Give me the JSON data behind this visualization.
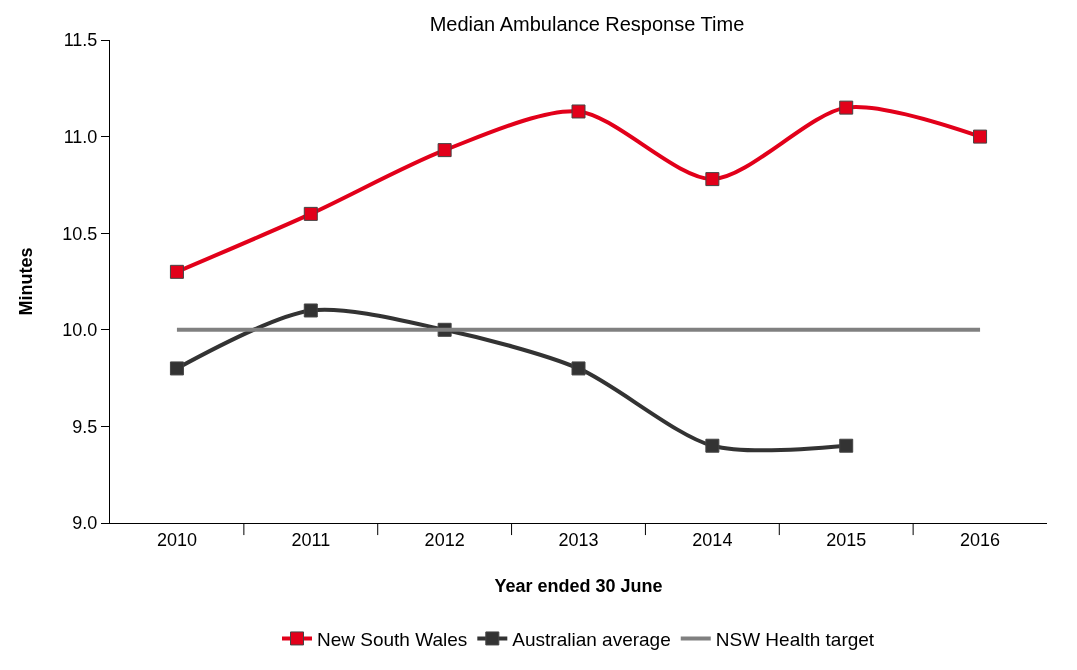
{
  "chart_data": {
    "type": "line",
    "title": "Median Ambulance Response Time",
    "xlabel": "Year ended 30 June",
    "ylabel": "Minutes",
    "categories": [
      "2010",
      "2011",
      "2012",
      "2013",
      "2014",
      "2015",
      "2016"
    ],
    "series": [
      {
        "name": "New South Wales",
        "color": "#e2001a",
        "values": [
          10.3,
          10.6,
          10.93,
          11.13,
          10.78,
          11.15,
          11.0
        ],
        "marker": "square"
      },
      {
        "name": "Australian average",
        "color": "#333333",
        "values": [
          9.8,
          10.1,
          10.0,
          9.8,
          9.4,
          9.4,
          null
        ],
        "marker": "square"
      },
      {
        "name": "NSW Health target",
        "color": "#808080",
        "values": [
          10.0,
          10.0,
          10.0,
          10.0,
          10.0,
          10.0,
          10.0
        ],
        "marker": "none"
      }
    ],
    "ylim": [
      9.0,
      11.5
    ],
    "yticks": [
      {
        "value": 9.0,
        "label": "9.0"
      },
      9.5,
      {
        "value": 10.0,
        "label": "10.0"
      },
      10.5,
      {
        "value": 11.0,
        "label": "11.0"
      },
      11.5
    ],
    "grid": false,
    "legend": "bottom",
    "line_style": "solid"
  }
}
